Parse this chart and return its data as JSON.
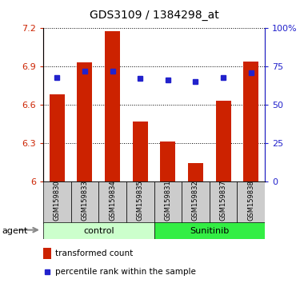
{
  "title": "GDS3109 / 1384298_at",
  "samples": [
    "GSM159830",
    "GSM159833",
    "GSM159834",
    "GSM159835",
    "GSM159831",
    "GSM159832",
    "GSM159837",
    "GSM159838"
  ],
  "bar_values": [
    6.68,
    6.93,
    7.18,
    6.47,
    6.31,
    6.14,
    6.63,
    6.94
  ],
  "bar_base": 6.0,
  "percentile_values": [
    68,
    72,
    72,
    67,
    66,
    65,
    68,
    71
  ],
  "ylim_left": [
    6.0,
    7.2
  ],
  "ylim_right": [
    0,
    100
  ],
  "yticks_left": [
    6.0,
    6.3,
    6.6,
    6.9,
    7.2
  ],
  "yticks_right": [
    0,
    25,
    50,
    75,
    100
  ],
  "ytick_labels_left": [
    "6",
    "6.3",
    "6.6",
    "6.9",
    "7.2"
  ],
  "ytick_labels_right": [
    "0",
    "25",
    "50",
    "75",
    "100%"
  ],
  "bar_color": "#cc2200",
  "dot_color": "#2222cc",
  "group_labels": [
    "control",
    "Sunitinib"
  ],
  "control_bg": "#ccffcc",
  "sunitinib_bg": "#33ee44",
  "sample_bg": "#cccccc",
  "agent_label": "agent",
  "legend_bar_label": "transformed count",
  "legend_dot_label": "percentile rank within the sample"
}
